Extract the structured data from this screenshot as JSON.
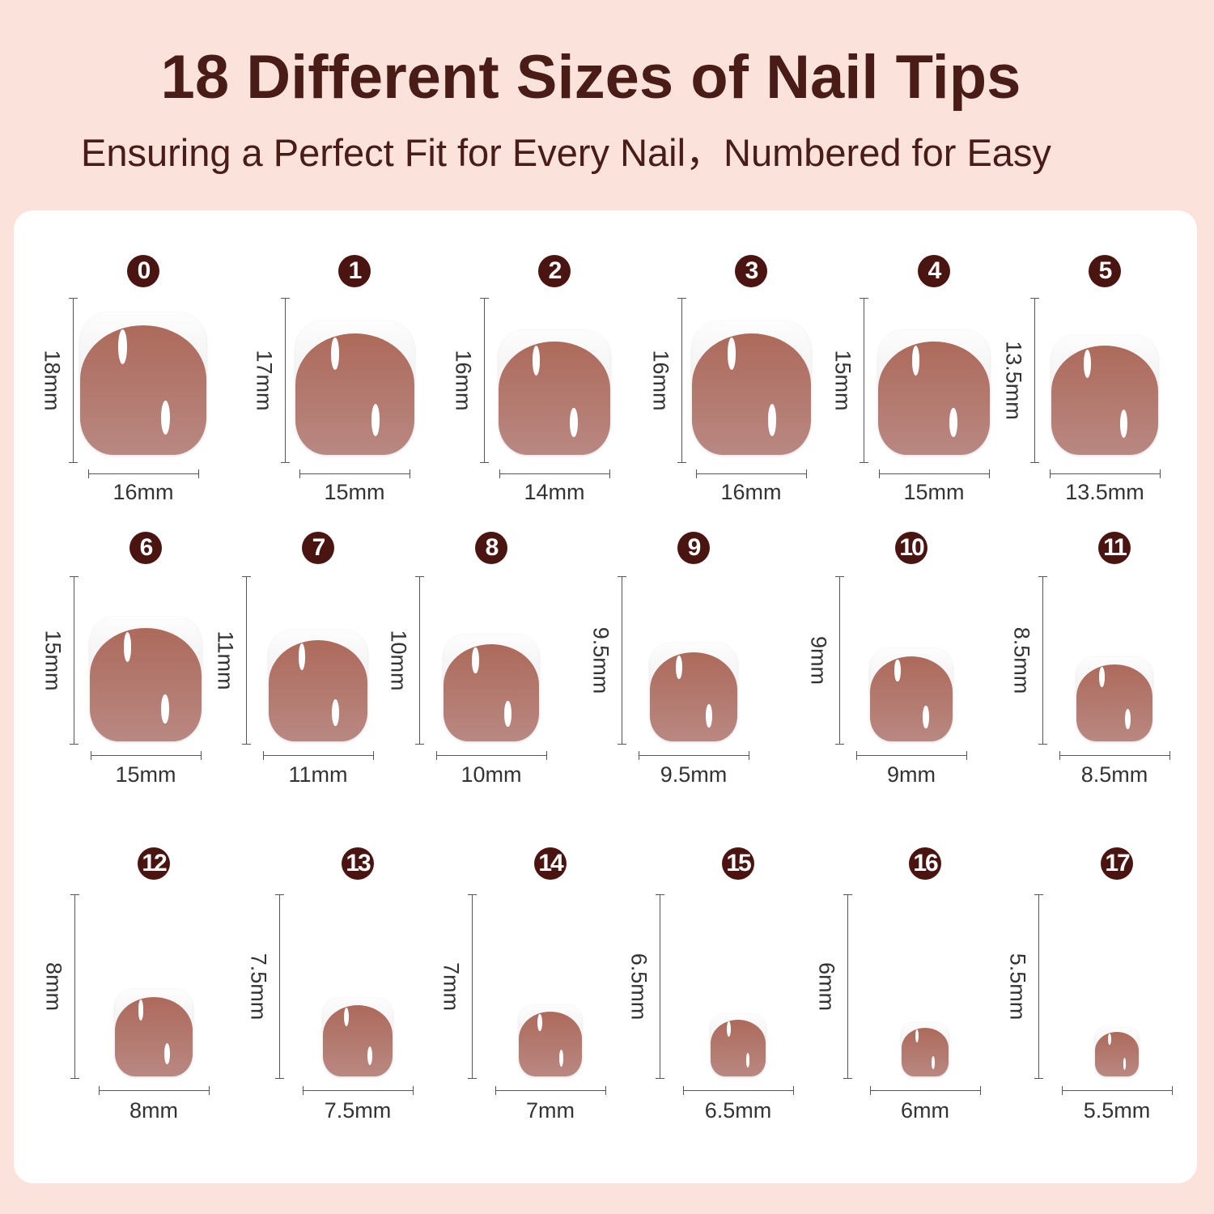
{
  "header": {
    "title": "18 Different Sizes of Nail Tips",
    "subtitle": "Ensuring a Perfect Fit for Every Nail，Numbered for Easy"
  },
  "colors": {
    "background": "#fbe3dc",
    "title": "#4a1c17",
    "badge": "#4a1510",
    "nail_bed": "#ad6a5b",
    "nail_tip": "#ffffff"
  },
  "nails": [
    {
      "number": "0",
      "length": "18mm",
      "width": "16mm",
      "w": 16
    },
    {
      "number": "1",
      "length": "17mm",
      "width": "15mm",
      "w": 15
    },
    {
      "number": "2",
      "length": "16mm",
      "width": "14mm",
      "w": 14
    },
    {
      "number": "3",
      "length": "16mm",
      "width": "16mm",
      "w": 15
    },
    {
      "number": "4",
      "length": "15mm",
      "width": "15mm",
      "w": 14
    },
    {
      "number": "5",
      "length": "13.5mm",
      "width": "13.5mm",
      "w": 13.5
    },
    {
      "number": "6",
      "length": "15mm",
      "width": "15mm",
      "w": 14
    },
    {
      "number": "7",
      "length": "11mm",
      "width": "11mm",
      "w": 12.5
    },
    {
      "number": "8",
      "length": "10mm",
      "width": "10mm",
      "w": 12
    },
    {
      "number": "9",
      "length": "9.5mm",
      "width": "9.5mm",
      "w": 11
    },
    {
      "number": "10",
      "length": "9mm",
      "width": "9mm",
      "w": 10.5
    },
    {
      "number": "11",
      "length": "8.5mm",
      "width": "8.5mm",
      "w": 9.5
    },
    {
      "number": "12",
      "length": "8mm",
      "width": "8mm",
      "w": 9.8
    },
    {
      "number": "13",
      "length": "7.5mm",
      "width": "7.5mm",
      "w": 8.8
    },
    {
      "number": "14",
      "length": "7mm",
      "width": "7mm",
      "w": 8
    },
    {
      "number": "15",
      "length": "6.5mm",
      "width": "6.5mm",
      "w": 7
    },
    {
      "number": "16",
      "length": "6mm",
      "width": "6mm",
      "w": 6
    },
    {
      "number": "17",
      "length": "5.5mm",
      "width": "5.5mm",
      "w": 5.5
    }
  ]
}
